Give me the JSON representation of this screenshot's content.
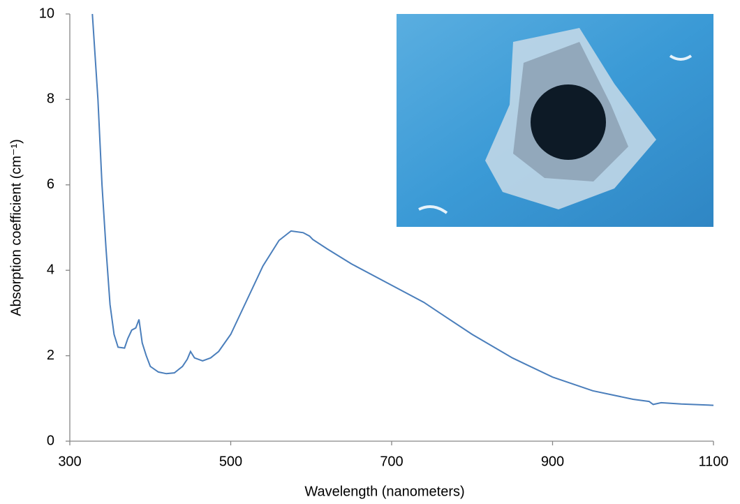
{
  "chart_data": {
    "type": "line",
    "x_label": "Wavelength (nanometers)",
    "y_label": "Absorption coefficient (cm⁻¹)",
    "xlim": [
      300,
      1100
    ],
    "xticks": [
      300,
      500,
      700,
      900,
      1100
    ],
    "ylim": [
      0,
      10
    ],
    "yticks": [
      0,
      2,
      4,
      6,
      8,
      10
    ],
    "series": [
      {
        "name": "Absorption",
        "color": "#4a7ebb",
        "x": [
          328,
          335,
          340,
          345,
          350,
          355,
          360,
          368,
          372,
          377,
          382,
          386,
          390,
          395,
          400,
          410,
          420,
          430,
          440,
          446,
          450,
          455,
          465,
          475,
          485,
          500,
          520,
          540,
          560,
          575,
          590,
          598,
          602,
          620,
          650,
          700,
          740,
          760,
          800,
          850,
          900,
          950,
          1000,
          1020,
          1025,
          1035,
          1060,
          1100
        ],
        "values": [
          10,
          8,
          6,
          4.5,
          3.2,
          2.5,
          2.2,
          2.18,
          2.4,
          2.6,
          2.65,
          2.85,
          2.3,
          2.0,
          1.75,
          1.62,
          1.58,
          1.6,
          1.75,
          1.92,
          2.1,
          1.95,
          1.88,
          1.95,
          2.1,
          2.5,
          3.3,
          4.1,
          4.7,
          4.92,
          4.88,
          4.8,
          4.72,
          4.5,
          4.15,
          3.65,
          3.25,
          3.0,
          2.5,
          1.95,
          1.5,
          1.18,
          0.98,
          0.93,
          0.86,
          0.9,
          0.87,
          0.84
        ]
      }
    ]
  }
}
